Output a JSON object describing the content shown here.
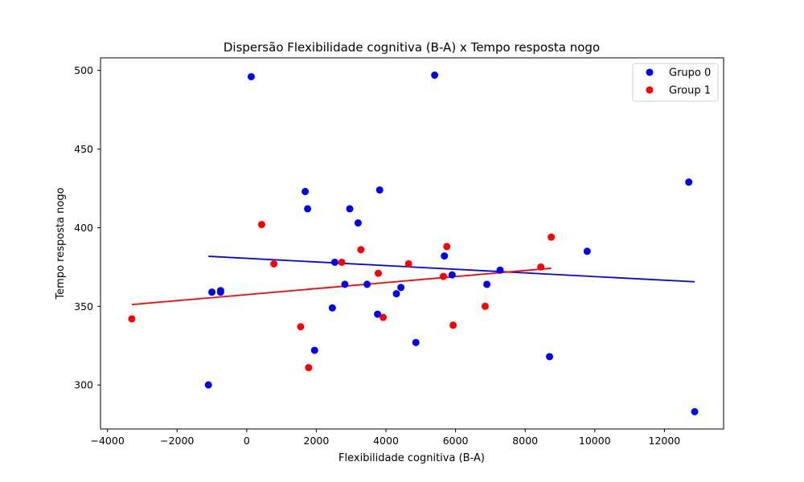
{
  "chart_data": {
    "type": "scatter",
    "title": "Dispersão Flexibilidade cognitiva (B-A) x Tempo resposta nogo",
    "xlabel": "Flexibilidade cognitiva (B-A)",
    "ylabel": "Tempo resposta nogo",
    "xlim": [
      -4200,
      13700
    ],
    "ylim": [
      272,
      508
    ],
    "xticks": [
      -4000,
      -2000,
      0,
      2000,
      4000,
      6000,
      8000,
      10000,
      12000
    ],
    "yticks": [
      300,
      350,
      400,
      450,
      500
    ],
    "grid": false,
    "legend_position": "top-right",
    "series": [
      {
        "name": "Grupo 0",
        "color": "#0000ff",
        "points": [
          [
            130,
            496
          ],
          [
            5400,
            497
          ],
          [
            -1100,
            300
          ],
          [
            12870,
            283
          ],
          [
            12700,
            429
          ],
          [
            9780,
            385
          ],
          [
            8700,
            318
          ],
          [
            7280,
            373
          ],
          [
            6900,
            364
          ],
          [
            5900,
            370
          ],
          [
            5680,
            382
          ],
          [
            4860,
            327
          ],
          [
            4430,
            362
          ],
          [
            4300,
            358
          ],
          [
            3820,
            424
          ],
          [
            3760,
            345
          ],
          [
            3460,
            364
          ],
          [
            3200,
            403
          ],
          [
            2960,
            412
          ],
          [
            2820,
            364
          ],
          [
            2530,
            378
          ],
          [
            2460,
            349
          ],
          [
            1950,
            322
          ],
          [
            1750,
            412
          ],
          [
            1680,
            423
          ],
          [
            -750,
            359
          ],
          [
            -750,
            360
          ],
          [
            -1000,
            359
          ]
        ],
        "trend": {
          "x_start": -1100,
          "y_start": 381.8,
          "x_end": 12870,
          "y_end": 365.6
        }
      },
      {
        "name": "Group 1",
        "color": "#ff0000",
        "points": [
          [
            -3300,
            342
          ],
          [
            430,
            402
          ],
          [
            780,
            377
          ],
          [
            1550,
            337
          ],
          [
            1780,
            311
          ],
          [
            2730,
            378
          ],
          [
            3280,
            386
          ],
          [
            3780,
            371
          ],
          [
            3920,
            343
          ],
          [
            4650,
            377
          ],
          [
            5650,
            369
          ],
          [
            5750,
            388
          ],
          [
            5930,
            338
          ],
          [
            6850,
            350
          ],
          [
            8450,
            375
          ],
          [
            8750,
            394
          ]
        ],
        "trend": {
          "x_start": -3300,
          "y_start": 351.1,
          "x_end": 8750,
          "y_end": 374.2
        }
      }
    ]
  }
}
